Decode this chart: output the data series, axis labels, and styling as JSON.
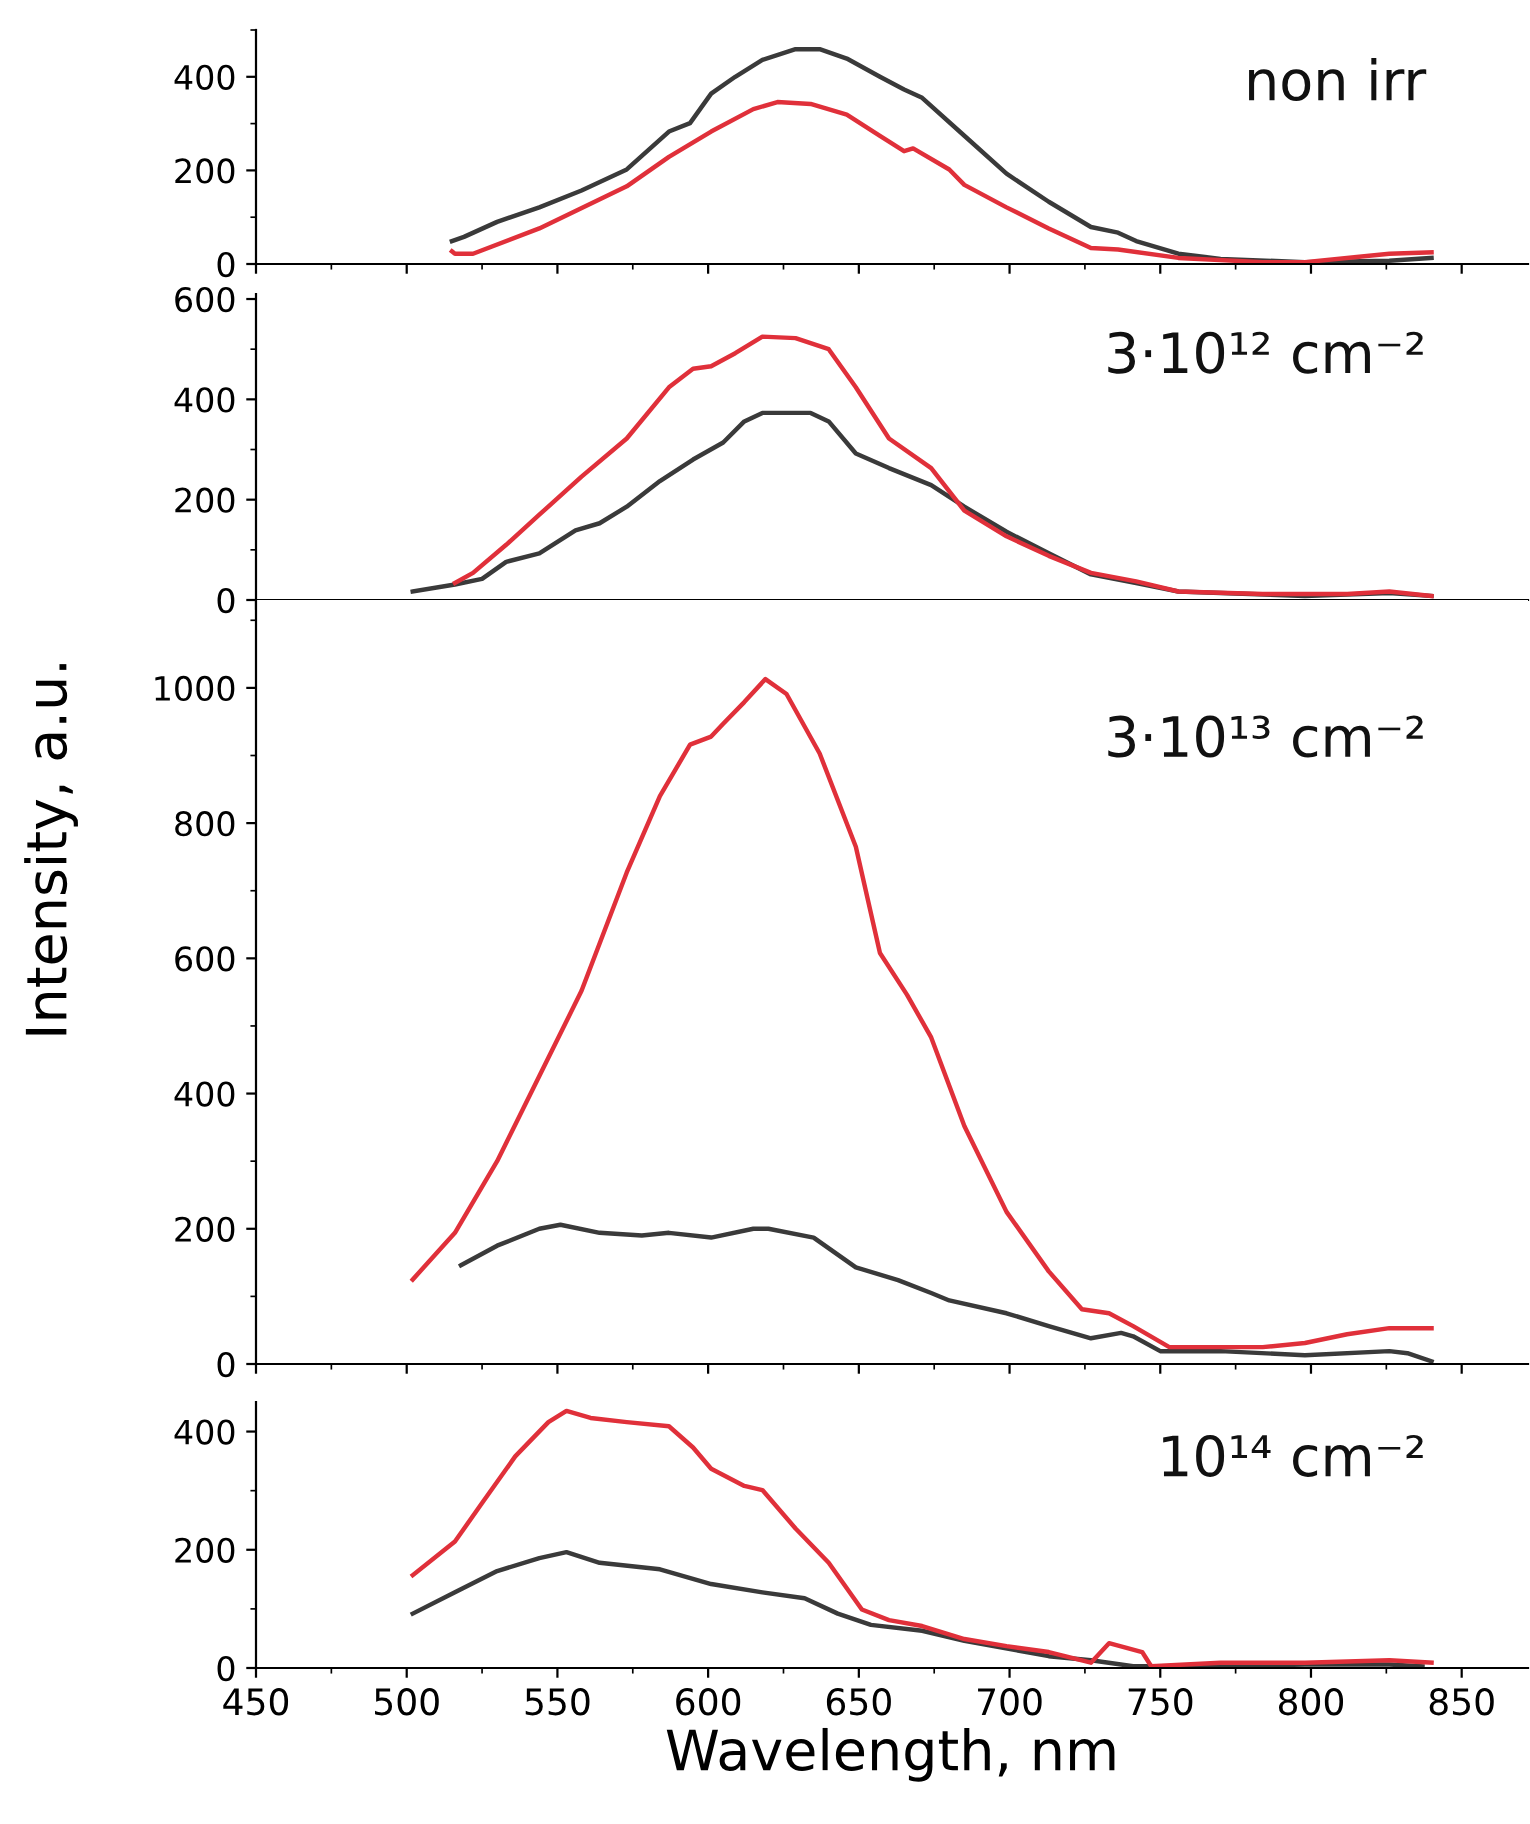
{
  "chart_data": [
    {
      "type": "line",
      "xlim": [
        450,
        872
      ],
      "xticks": [
        450,
        500,
        550,
        600,
        650,
        700,
        750,
        800,
        850
      ],
      "ylim": [
        0,
        500
      ],
      "yticks": [
        0,
        200,
        400
      ],
      "tick_labels": "y",
      "annotations": [
        "non irr"
      ],
      "series": [
        {
          "color": "#3a3a3a",
          "x": [
            515,
            519,
            530,
            544,
            558,
            573,
            587,
            594,
            601,
            609,
            618,
            629,
            637,
            646,
            657,
            665,
            671,
            685,
            699,
            713,
            727,
            736,
            742,
            756,
            770,
            798,
            826,
            840
          ],
          "values": [
            49,
            58,
            90,
            121,
            157,
            202,
            283,
            301,
            364,
            400,
            436,
            459,
            459,
            439,
            400,
            373,
            355,
            274,
            193,
            133,
            79,
            67,
            49,
            22,
            11,
            4,
            7,
            13
          ]
        },
        {
          "color": "#e0303a",
          "x": [
            515,
            516,
            522,
            544,
            573,
            587,
            601,
            615,
            623,
            634,
            646,
            657,
            665,
            668,
            680,
            685,
            699,
            713,
            727,
            736,
            756,
            784,
            798,
            826,
            840
          ],
          "values": [
            27,
            22,
            22,
            76,
            166,
            229,
            283,
            331,
            346,
            342,
            319,
            274,
            241,
            247,
            202,
            169,
            121,
            76,
            34,
            31,
            13,
            4,
            4,
            22,
            25
          ]
        }
      ]
    },
    {
      "type": "line",
      "xlim": [
        450,
        872
      ],
      "xticks": [
        450,
        500,
        550,
        600,
        650,
        700,
        750,
        800,
        850
      ],
      "ylim": [
        0,
        610
      ],
      "yticks": [
        0,
        200,
        400,
        600
      ],
      "tick_labels": "y",
      "annotations": [
        "3·10¹² cm⁻²"
      ],
      "series": [
        {
          "color": "#3a3a3a",
          "x": [
            502,
            516,
            525,
            533,
            544,
            556,
            564,
            573,
            584,
            595,
            605,
            612,
            618,
            634,
            640,
            649,
            660,
            674,
            685,
            699,
            713,
            727,
            742,
            756,
            770,
            798,
            826,
            840
          ],
          "values": [
            17,
            31,
            42,
            76,
            93,
            139,
            153,
            186,
            237,
            280,
            314,
            356,
            373,
            373,
            356,
            292,
            263,
            229,
            186,
            136,
            93,
            51,
            34,
            17,
            14,
            8,
            14,
            8
          ]
        },
        {
          "color": "#e0303a",
          "x": [
            516,
            522,
            533,
            544,
            558,
            573,
            587,
            595,
            601,
            609,
            618,
            629,
            640,
            649,
            660,
            674,
            685,
            699,
            713,
            727,
            742,
            756,
            784,
            812,
            826,
            840
          ],
          "values": [
            34,
            54,
            110,
            170,
            246,
            322,
            424,
            461,
            466,
            492,
            525,
            522,
            500,
            424,
            322,
            263,
            178,
            127,
            88,
            54,
            37,
            17,
            12,
            12,
            17,
            8
          ]
        }
      ]
    },
    {
      "type": "line",
      "xlim": [
        450,
        872
      ],
      "xticks": [
        450,
        500,
        550,
        600,
        650,
        700,
        750,
        800,
        850
      ],
      "ylim": [
        0,
        1130
      ],
      "yticks": [
        0,
        200,
        400,
        600,
        800,
        1000
      ],
      "tick_labels": "y",
      "ylabel": "Intensity, a.u.",
      "annotations": [
        "3·10¹³ cm⁻²"
      ],
      "series": [
        {
          "color": "#3a3a3a",
          "x": [
            518,
            530,
            544,
            551,
            564,
            578,
            587,
            601,
            615,
            620,
            635,
            649,
            663,
            674,
            680,
            699,
            713,
            727,
            737,
            741,
            750,
            770,
            798,
            826,
            832,
            840
          ],
          "values": [
            146,
            175,
            200,
            206,
            194,
            190,
            194,
            187,
            200,
            200,
            187,
            143,
            124,
            105,
            94,
            75,
            56,
            38,
            46,
            41,
            19,
            19,
            13,
            19,
            16,
            4
          ]
        },
        {
          "color": "#e0303a",
          "x": [
            502,
            516,
            530,
            544,
            558,
            573,
            584,
            594,
            601,
            605,
            612,
            619,
            626,
            637,
            649,
            657,
            666,
            674,
            685,
            699,
            713,
            724,
            733,
            741,
            753,
            770,
            784,
            798,
            812,
            826,
            840
          ],
          "values": [
            125,
            194,
            300,
            426,
            552,
            727,
            840,
            916,
            928,
            947,
            979,
            1013,
            991,
            903,
            765,
            608,
            546,
            483,
            352,
            225,
            137,
            81,
            75,
            56,
            25,
            25,
            25,
            31,
            44,
            53,
            53
          ]
        }
      ]
    },
    {
      "type": "line",
      "xlim": [
        450,
        872
      ],
      "xticks": [
        450,
        500,
        550,
        600,
        650,
        700,
        750,
        800,
        850
      ],
      "ylim": [
        0,
        450
      ],
      "yticks": [
        0,
        200,
        400
      ],
      "xlabel": "Wavelength, nm",
      "annotations": [
        "10¹⁴ cm⁻²"
      ],
      "series": [
        {
          "color": "#3a3a3a",
          "x": [
            502,
            516,
            530,
            544,
            553,
            564,
            584,
            601,
            618,
            632,
            643,
            654,
            671,
            685,
            713,
            727,
            741,
            770,
            798,
            826,
            837
          ],
          "values": [
            92,
            128,
            164,
            186,
            196,
            178,
            167,
            142,
            128,
            118,
            92,
            73,
            63,
            46,
            20,
            13,
            3,
            3,
            6,
            6,
            3
          ]
        },
        {
          "color": "#e0303a",
          "x": [
            502,
            516,
            525,
            536,
            547,
            553,
            561,
            573,
            587,
            595,
            601,
            612,
            618,
            629,
            640,
            651,
            660,
            671,
            685,
            699,
            713,
            727,
            733,
            744,
            747,
            770,
            798,
            826,
            840
          ],
          "values": [
            157,
            214,
            279,
            358,
            416,
            435,
            423,
            416,
            409,
            373,
            337,
            308,
            301,
            236,
            178,
            99,
            81,
            71,
            49,
            37,
            27,
            9,
            42,
            27,
            3,
            9,
            9,
            13,
            9
          ]
        }
      ]
    }
  ]
}
